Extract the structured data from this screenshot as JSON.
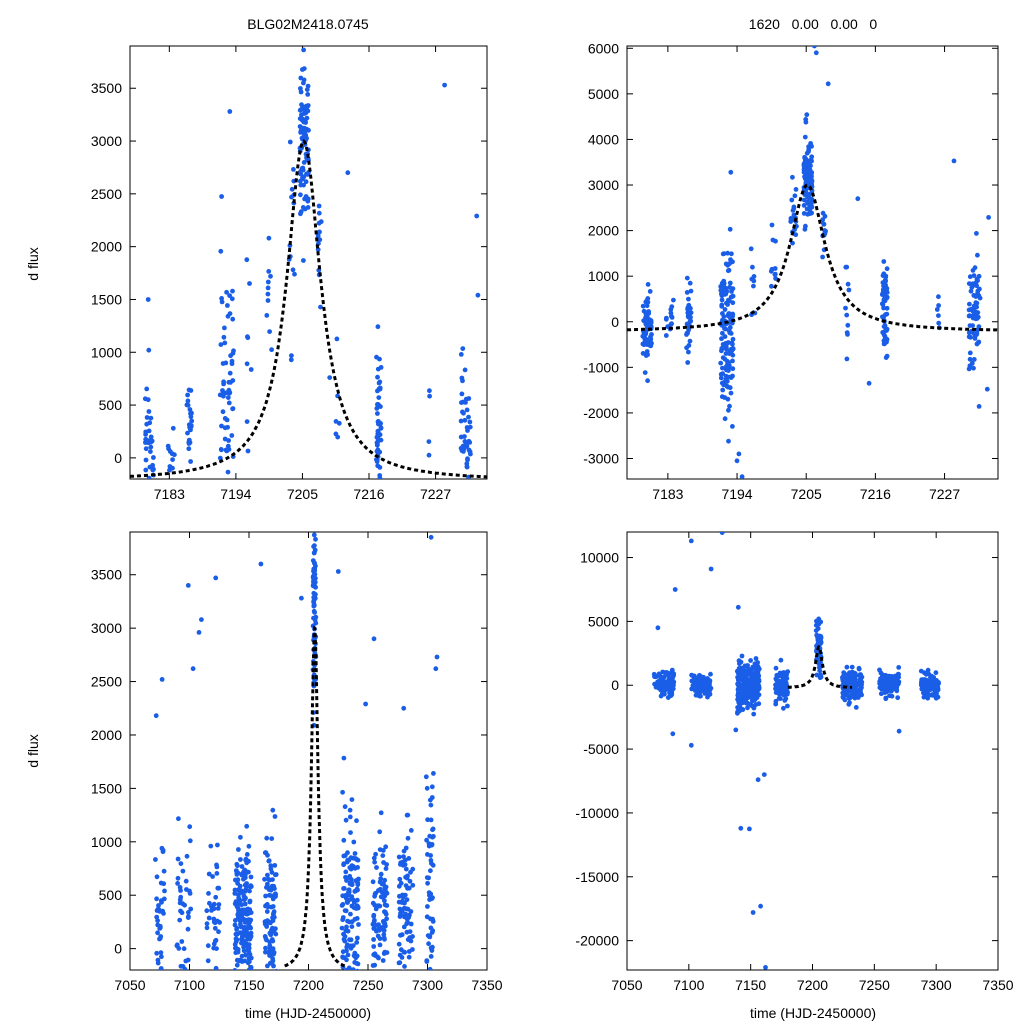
{
  "figure": {
    "title_left": "BLG02M2418.0745",
    "title_right": "1620   0.00   0.00   0",
    "ylabel": "d flux",
    "xlabel": "time (HJD-2450000)",
    "point_color": "#1a5ee8",
    "model_color": "#000000"
  },
  "chart_data": [
    {
      "id": "top-left",
      "type": "scatter",
      "xlabel": "",
      "ylabel": "d flux",
      "xlim": [
        7176.5,
        7235.5
      ],
      "ylim": [
        -200,
        3900
      ],
      "xticks": [
        7183,
        7194,
        7205,
        7216,
        7227
      ],
      "yticks": [
        0,
        500,
        1000,
        1500,
        2000,
        2500,
        3000,
        3500
      ],
      "model": {
        "t0": 7205.2,
        "peak": 3000,
        "base": -220,
        "width": 3.4
      },
      "groups": [
        {
          "x": 7179.7,
          "xs": 0.7,
          "c": 200,
          "s": 230,
          "n": 36
        },
        {
          "x": 7183.3,
          "xs": 0.6,
          "c": 40,
          "s": 140,
          "n": 10
        },
        {
          "x": 7186.3,
          "xs": 0.4,
          "c": 250,
          "s": 270,
          "n": 28
        },
        {
          "x": 7192.5,
          "xs": 1.1,
          "c": 500,
          "s": 600,
          "n": 80
        },
        {
          "x": 7196.2,
          "xs": 0.5,
          "c": 900,
          "s": 450,
          "n": 8
        },
        {
          "x": 7199.5,
          "xs": 0.4,
          "c": 1500,
          "s": 400,
          "n": 10
        },
        {
          "x": 7203.2,
          "xs": 0.5,
          "c": 2100,
          "s": 550,
          "n": 14
        },
        {
          "x": 7205.3,
          "xs": 0.7,
          "c": 3050,
          "s": 350,
          "n": 100
        },
        {
          "x": 7207.8,
          "xs": 0.3,
          "c": 2000,
          "s": 250,
          "n": 12
        },
        {
          "x": 7210.8,
          "xs": 0.3,
          "c": 600,
          "s": 250,
          "n": 6
        },
        {
          "x": 7217.6,
          "xs": 0.4,
          "c": 200,
          "s": 350,
          "n": 55
        },
        {
          "x": 7226.0,
          "xs": 0.2,
          "c": 300,
          "s": 250,
          "n": 4
        },
        {
          "x": 7232.0,
          "xs": 0.8,
          "c": 300,
          "s": 320,
          "n": 48
        }
      ],
      "outliers": [
        [
          7179.5,
          1500
        ],
        [
          7179.6,
          1020
        ],
        [
          7193.0,
          3280
        ],
        [
          7212.5,
          2700
        ],
        [
          7228.5,
          3530
        ],
        [
          7233.8,
          2290
        ],
        [
          7234.0,
          1540
        ],
        [
          7209.5,
          760
        ]
      ]
    },
    {
      "id": "top-right",
      "type": "scatter",
      "xlabel": "",
      "ylabel": "",
      "xlim": [
        7176.5,
        7235.5
      ],
      "ylim": [
        -3450,
        6050
      ],
      "xticks": [
        7183,
        7194,
        7205,
        7216,
        7227
      ],
      "yticks": [
        -3000,
        -2000,
        -1000,
        0,
        1000,
        2000,
        3000,
        4000,
        5000,
        6000
      ],
      "model": {
        "t0": 7205.2,
        "peak": 3000,
        "base": -220,
        "width": 3.4
      },
      "groups": [
        {
          "x": 7179.7,
          "xs": 0.7,
          "c": -150,
          "s": 380,
          "n": 70
        },
        {
          "x": 7183.3,
          "xs": 0.6,
          "c": -50,
          "s": 250,
          "n": 14
        },
        {
          "x": 7186.3,
          "xs": 0.4,
          "c": 150,
          "s": 380,
          "n": 30
        },
        {
          "x": 7192.4,
          "xs": 1.0,
          "c": -300,
          "s": 1050,
          "n": 140
        },
        {
          "x": 7196.5,
          "xs": 0.4,
          "c": 900,
          "s": 500,
          "n": 8
        },
        {
          "x": 7199.8,
          "xs": 0.4,
          "c": 1300,
          "s": 500,
          "n": 10
        },
        {
          "x": 7203.0,
          "xs": 0.5,
          "c": 2400,
          "s": 500,
          "n": 20
        },
        {
          "x": 7205.3,
          "xs": 0.7,
          "c": 3200,
          "s": 500,
          "n": 110
        },
        {
          "x": 7207.8,
          "xs": 0.3,
          "c": 2000,
          "s": 300,
          "n": 14
        },
        {
          "x": 7211.5,
          "xs": 0.3,
          "c": 400,
          "s": 500,
          "n": 10
        },
        {
          "x": 7217.5,
          "xs": 0.4,
          "c": 250,
          "s": 550,
          "n": 60
        },
        {
          "x": 7226.0,
          "xs": 0.2,
          "c": 150,
          "s": 300,
          "n": 6
        },
        {
          "x": 7231.8,
          "xs": 0.9,
          "c": 200,
          "s": 650,
          "n": 70
        }
      ],
      "outliers": [
        [
          7206.3,
          6050
        ],
        [
          7206.6,
          5900
        ],
        [
          7208.5,
          5220
        ],
        [
          7193.0,
          3280
        ],
        [
          7228.5,
          3530
        ],
        [
          7234.0,
          2290
        ],
        [
          7213.2,
          2700
        ],
        [
          7194.0,
          -3050
        ],
        [
          7194.3,
          -2900
        ],
        [
          7194.8,
          -3400
        ],
        [
          7215.0,
          -1350
        ],
        [
          7233.8,
          -1480
        ]
      ]
    },
    {
      "id": "bottom-left",
      "type": "scatter",
      "xlabel": "time (HJD-2450000)",
      "ylabel": "d flux",
      "xlim": [
        7050,
        7350
      ],
      "ylim": [
        -200,
        3900
      ],
      "xticks": [
        7050,
        7100,
        7150,
        7200,
        7250,
        7300,
        7350
      ],
      "yticks": [
        0,
        500,
        1000,
        1500,
        2000,
        2500,
        3000,
        3500
      ],
      "model": {
        "t0": 7205.2,
        "peak": 3000,
        "base": -220,
        "width": 3.4,
        "range": [
          7180,
          7232
        ]
      },
      "groups": [
        {
          "x": 7075,
          "xs": 4,
          "c": 350,
          "s": 420,
          "n": 40
        },
        {
          "x": 7095,
          "xs": 6,
          "c": 300,
          "s": 380,
          "n": 45
        },
        {
          "x": 7120,
          "xs": 6,
          "c": 300,
          "s": 380,
          "n": 40
        },
        {
          "x": 7145,
          "xs": 7,
          "c": 250,
          "s": 340,
          "n": 200
        },
        {
          "x": 7168,
          "xs": 5,
          "c": 300,
          "s": 420,
          "n": 110
        },
        {
          "x": 7205,
          "xs": 1.2,
          "c": 3200,
          "s": 450,
          "n": 80
        },
        {
          "x": 7235,
          "xs": 7,
          "c": 350,
          "s": 480,
          "n": 140
        },
        {
          "x": 7260,
          "xs": 6,
          "c": 300,
          "s": 380,
          "n": 100
        },
        {
          "x": 7282,
          "xs": 6,
          "c": 350,
          "s": 430,
          "n": 90
        },
        {
          "x": 7302,
          "xs": 3,
          "c": 400,
          "s": 600,
          "n": 60
        }
      ],
      "outliers": [
        [
          7072,
          2180
        ],
        [
          7077,
          2520
        ],
        [
          7099,
          3400
        ],
        [
          7103,
          2620
        ],
        [
          7110,
          3080
        ],
        [
          7108,
          2960
        ],
        [
          7122,
          3470
        ],
        [
          7160,
          3600
        ],
        [
          7194,
          3280
        ],
        [
          7225,
          3530
        ],
        [
          7248,
          2290
        ],
        [
          7255,
          2900
        ],
        [
          7280,
          2250
        ],
        [
          7303,
          3850
        ],
        [
          7308,
          2730
        ],
        [
          7307,
          2620
        ]
      ]
    },
    {
      "id": "bottom-right",
      "type": "scatter",
      "xlabel": "time (HJD-2450000)",
      "ylabel": "",
      "xlim": [
        7050,
        7350
      ],
      "ylim": [
        -22300,
        12000
      ],
      "xticks": [
        7050,
        7100,
        7150,
        7200,
        7250,
        7300,
        7350
      ],
      "yticks": [
        -20000,
        -15000,
        -10000,
        -5000,
        0,
        5000,
        10000
      ],
      "model": {
        "t0": 7205.2,
        "peak": 3000,
        "base": -220,
        "width": 3.4,
        "range": [
          7180,
          7232
        ]
      },
      "groups": [
        {
          "x": 7080,
          "xs": 8,
          "c": 0,
          "s": 500,
          "n": 90
        },
        {
          "x": 7110,
          "xs": 8,
          "c": 0,
          "s": 450,
          "n": 80
        },
        {
          "x": 7148,
          "xs": 9,
          "c": -100,
          "s": 900,
          "n": 230
        },
        {
          "x": 7175,
          "xs": 5,
          "c": 0,
          "s": 600,
          "n": 80
        },
        {
          "x": 7205,
          "xs": 2,
          "c": 3000,
          "s": 1000,
          "n": 70
        },
        {
          "x": 7232,
          "xs": 8,
          "c": 0,
          "s": 600,
          "n": 130
        },
        {
          "x": 7262,
          "xs": 8,
          "c": 0,
          "s": 450,
          "n": 110
        },
        {
          "x": 7295,
          "xs": 7,
          "c": 0,
          "s": 500,
          "n": 100
        }
      ],
      "outliers": [
        [
          7102,
          11300
        ],
        [
          7127,
          11950
        ],
        [
          7118,
          9100
        ],
        [
          7089,
          7500
        ],
        [
          7140,
          6100
        ],
        [
          7075,
          4500
        ],
        [
          7087,
          -3800
        ],
        [
          7102,
          -4700
        ],
        [
          7142,
          -11200
        ],
        [
          7149,
          -11250
        ],
        [
          7152,
          -17800
        ],
        [
          7158,
          -17300
        ],
        [
          7162,
          -22100
        ],
        [
          7156,
          -7400
        ],
        [
          7161,
          -7000
        ],
        [
          7138,
          -3500
        ],
        [
          7270,
          -3600
        ]
      ]
    }
  ]
}
